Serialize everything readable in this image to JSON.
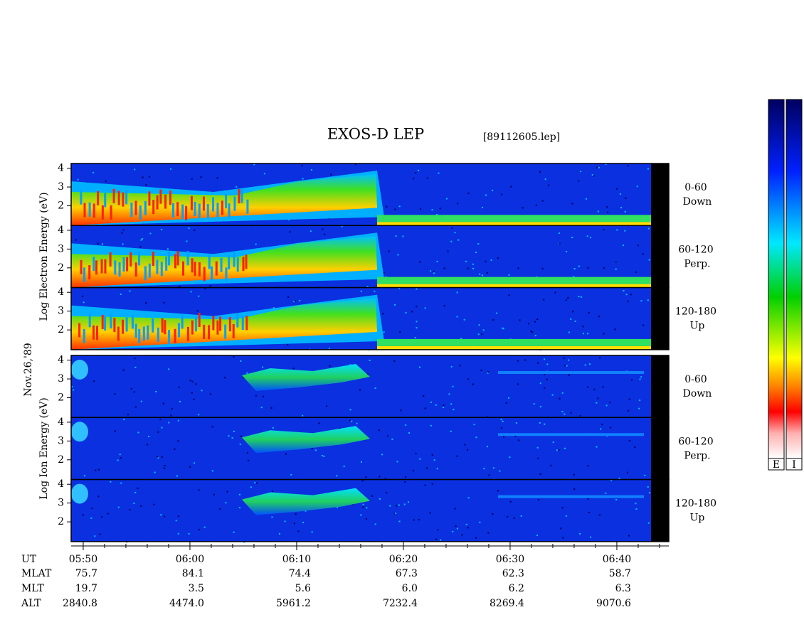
{
  "title": "EXOS-D LEP",
  "file": "[89112605.lep]",
  "date": "Nov.26,'89",
  "ylim": [
    0.95,
    4.25
  ],
  "yticks": [
    2,
    3,
    4
  ],
  "blocks": [
    {
      "label": "Log Electron Energy (eV)",
      "panels": [
        {
          "range": "0-60",
          "direction": "Down"
        },
        {
          "range": "60-120",
          "direction": "Perp."
        },
        {
          "range": "120-180",
          "direction": "Up"
        }
      ]
    },
    {
      "label": "Log Ion Energy (eV)",
      "panels": [
        {
          "range": "0-60",
          "direction": "Down"
        },
        {
          "range": "60-120",
          "direction": "Perp."
        },
        {
          "range": "120-180",
          "direction": "Up"
        }
      ]
    }
  ],
  "time_axis": {
    "label": "UT",
    "xlim": [
      348.87,
      404.87
    ],
    "xticks": [
      {
        "value": 350,
        "label": "05:50"
      },
      {
        "value": 360,
        "label": "06:00"
      },
      {
        "value": 370,
        "label": "06:10"
      },
      {
        "value": 380,
        "label": "06:20"
      },
      {
        "value": 390,
        "label": "06:30"
      },
      {
        "value": 400,
        "label": "06:40"
      }
    ],
    "xminorticks": [
      352,
      354,
      356,
      358,
      362,
      364,
      366,
      368,
      372,
      374,
      376,
      378,
      382,
      384,
      386,
      388,
      392,
      394,
      396,
      398,
      402,
      404
    ]
  },
  "ephemeris": [
    {
      "label": "MLAT",
      "values": [
        "75.7",
        "84.1",
        "74.4",
        "67.3",
        "62.3",
        "58.7"
      ]
    },
    {
      "label": "MLT",
      "values": [
        "19.7",
        "3.5",
        "5.6",
        "6.0",
        "6.2",
        "6.3"
      ]
    },
    {
      "label": "ALT",
      "values": [
        "2840.8",
        "4474.0",
        "5961.2",
        "7232.4",
        "8269.4",
        "9070.6"
      ]
    }
  ],
  "colorbars": [
    "E",
    "I"
  ]
}
